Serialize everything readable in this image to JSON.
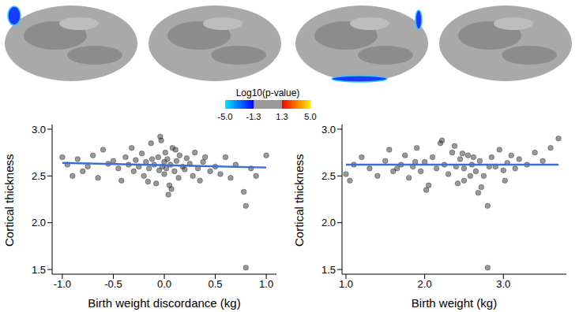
{
  "chart_data": [
    {
      "type": "scatter",
      "x_label": "Birth weight discordance (kg)",
      "y_label": "Cortical thickness",
      "xlim": [
        -1.1,
        1.1
      ],
      "xticks": [
        {
          "value": -1,
          "label": "-1.0"
        },
        {
          "value": -0.5,
          "label": "-0.5"
        },
        {
          "value": 0,
          "label": "0.0"
        },
        {
          "value": 0.5,
          "label": "0.5"
        },
        {
          "value": 1,
          "label": "1.0"
        }
      ],
      "ylim": [
        1.45,
        3.05
      ],
      "yticks": [
        1.5,
        {
          "value": 2,
          "label": "2.0"
        },
        2.5,
        {
          "value": 3,
          "label": "3.0"
        }
      ],
      "series": [
        {
          "type": "scatter",
          "color": "#333333",
          "x": [
            -1.0,
            -0.95,
            -0.9,
            -0.85,
            -0.8,
            -0.75,
            -0.7,
            -0.65,
            -0.6,
            -0.55,
            -0.5,
            -0.45,
            -0.42,
            -0.38,
            -0.35,
            -0.32,
            -0.3,
            -0.28,
            -0.25,
            -0.22,
            -0.2,
            -0.18,
            -0.15,
            -0.13,
            -0.1,
            -0.08,
            -0.06,
            -0.05,
            -0.03,
            -0.02,
            0.0,
            0.0,
            0.01,
            0.02,
            0.03,
            0.05,
            0.06,
            0.08,
            0.1,
            0.12,
            0.14,
            0.15,
            0.18,
            0.2,
            0.22,
            0.25,
            0.28,
            0.3,
            0.33,
            0.35,
            0.38,
            0.4,
            0.45,
            0.5,
            0.55,
            0.6,
            0.65,
            0.7,
            0.78,
            0.8,
            0.8,
            0.85,
            0.9,
            1.0,
            -0.12,
            0.07,
            -0.04,
            0.04,
            0.11,
            -0.16
          ],
          "values": [
            2.7,
            2.62,
            2.5,
            2.68,
            2.55,
            2.6,
            2.72,
            2.48,
            2.78,
            2.63,
            2.66,
            2.58,
            2.45,
            2.7,
            2.62,
            2.8,
            2.55,
            2.67,
            2.6,
            2.74,
            2.5,
            2.65,
            2.58,
            2.85,
            2.62,
            2.42,
            2.7,
            2.56,
            2.88,
            2.6,
            2.65,
            2.52,
            2.75,
            2.58,
            2.68,
            2.4,
            2.62,
            2.8,
            2.55,
            2.66,
            2.48,
            2.72,
            2.6,
            2.57,
            2.69,
            2.63,
            2.5,
            2.75,
            2.58,
            2.45,
            2.65,
            2.7,
            2.55,
            2.6,
            2.52,
            2.7,
            2.48,
            2.62,
            2.33,
            2.18,
            1.52,
            2.58,
            2.5,
            2.72,
            2.68,
            2.36,
            2.92,
            2.3,
            2.78,
            2.44
          ]
        },
        {
          "type": "line",
          "color": "#3b6fd4",
          "x": [
            -1.0,
            1.0
          ],
          "values": [
            2.64,
            2.59
          ]
        }
      ]
    },
    {
      "type": "scatter",
      "x_label": "Birth weight (kg)",
      "y_label": "Cortical thickness",
      "xlim": [
        0.95,
        3.8
      ],
      "xticks": [
        {
          "value": 1,
          "label": "1.0"
        },
        {
          "value": 2,
          "label": "2.0"
        },
        {
          "value": 3,
          "label": "3.0"
        }
      ],
      "ylim": [
        1.45,
        3.05
      ],
      "yticks": [
        1.5,
        {
          "value": 2,
          "label": "2.0"
        },
        2.5,
        {
          "value": 3,
          "label": "3.0"
        }
      ],
      "series": [
        {
          "type": "scatter",
          "color": "#333333",
          "x": [
            1.0,
            1.05,
            1.1,
            1.2,
            1.3,
            1.4,
            1.5,
            1.55,
            1.6,
            1.7,
            1.75,
            1.8,
            1.85,
            1.9,
            1.95,
            2.0,
            2.05,
            2.1,
            2.15,
            2.2,
            2.25,
            2.3,
            2.35,
            2.4,
            2.45,
            2.5,
            2.5,
            2.55,
            2.6,
            2.65,
            2.7,
            2.75,
            2.8,
            2.8,
            2.85,
            2.9,
            2.95,
            3.0,
            3.05,
            3.1,
            3.15,
            3.2,
            3.3,
            3.4,
            3.5,
            3.6,
            3.7,
            2.02,
            2.22,
            2.42,
            2.62,
            2.72,
            2.82,
            2.38,
            2.58,
            1.88,
            3.02,
            2.48,
            2.68,
            1.65
          ],
          "values": [
            2.52,
            2.45,
            2.62,
            2.7,
            2.58,
            2.5,
            2.66,
            2.78,
            2.55,
            2.62,
            2.72,
            2.48,
            2.6,
            2.8,
            2.55,
            2.65,
            2.4,
            2.7,
            2.58,
            2.85,
            2.62,
            2.52,
            2.75,
            2.6,
            2.68,
            2.45,
            2.58,
            2.72,
            2.62,
            2.55,
            2.66,
            2.5,
            2.18,
            1.52,
            2.7,
            2.6,
            2.78,
            2.56,
            2.64,
            2.72,
            2.58,
            2.68,
            2.62,
            2.75,
            2.66,
            2.8,
            2.9,
            2.35,
            2.88,
            2.42,
            2.7,
            2.38,
            2.6,
            2.82,
            2.5,
            2.65,
            2.45,
            2.74,
            2.32,
            2.58
          ]
        },
        {
          "type": "line",
          "color": "#3b6fd4",
          "x": [
            1.0,
            3.7
          ],
          "values": [
            2.62,
            2.62
          ]
        }
      ]
    }
  ],
  "colorbar": {
    "title": "Log10(p-value)",
    "ticks": [
      {
        "value": -5,
        "label": "-5.0"
      },
      {
        "value": -1.3,
        "label": "-1.3"
      },
      {
        "value": 1.3,
        "label": "1.3"
      },
      {
        "value": 5,
        "label": "5.0"
      }
    ]
  }
}
